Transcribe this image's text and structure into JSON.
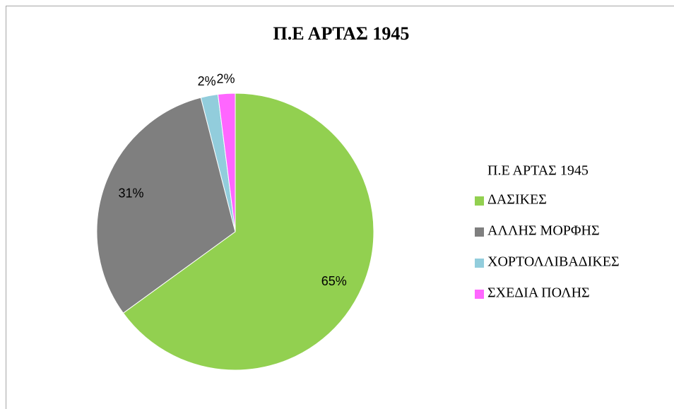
{
  "chart_data": {
    "type": "pie",
    "title": "Π.Ε ΑΡΤΑΣ 1945",
    "legend_title": "Π.Ε ΑΡΤΑΣ 1945",
    "legend": "right",
    "categories": [
      "ΔΑΣΙΚΕΣ",
      "ΑΛΛΗΣ ΜΟΡΦΗΣ",
      "ΧΟΡΤΟΛΛΙΒΑΔΙΚΕΣ",
      "ΣΧΕΔΙΑ ΠΟΛΗΣ"
    ],
    "values": [
      65,
      31,
      2,
      2
    ],
    "value_labels": [
      "65%",
      "31%",
      "2%",
      "2%"
    ],
    "colors": [
      "#92d050",
      "#7f7f7f",
      "#92cddc",
      "#ff66ff"
    ]
  }
}
